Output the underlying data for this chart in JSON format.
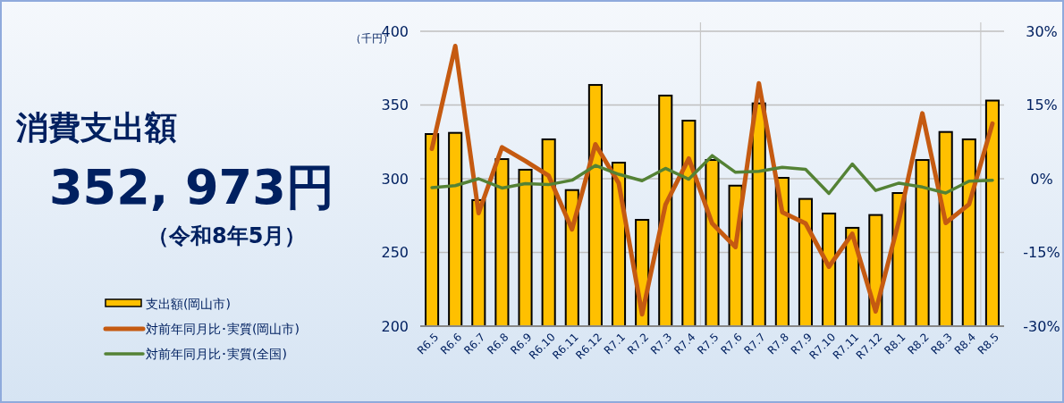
{
  "chart_data": {
    "type": "bar",
    "title": "消費支出額",
    "annotations": [
      "352, 973円",
      "（令和8年5月）"
    ],
    "ylabel": "（千円）",
    "categories": [
      "R6.5",
      "R6.6",
      "R6.7",
      "R6.8",
      "R6.9",
      "R6.10",
      "R6.11",
      "R6.12",
      "R7.1",
      "R7.2",
      "R7.3",
      "R7.4",
      "R7.5",
      "R7.6",
      "R7.7",
      "R7.8",
      "R7.9",
      "R7.10",
      "R7.11",
      "R7.12",
      "R8.1",
      "R8.2",
      "R8.3",
      "R8.4",
      "R8.5"
    ],
    "series": [
      {
        "name": "支出額(岡山市)",
        "color": "#ffc000",
        "values": [
          330.3,
          331.1,
          285.5,
          313.3,
          306.1,
          326.7,
          292.3,
          363.6,
          310.9,
          272.1,
          356.4,
          339.4,
          312.7,
          295.3,
          351.1,
          300.6,
          286.3,
          276.4,
          266.7,
          275.4,
          290.3,
          312.7,
          331.7,
          326.7,
          353.0
        ]
      },
      {
        "name": "対前年同月比･実質(岡山市)",
        "type": "line",
        "axis": "y2",
        "color": "#c55a11",
        "values": [
          6.1,
          27.0,
          -7.0,
          6.4,
          3.6,
          0.6,
          -10.3,
          7.0,
          -0.9,
          -27.6,
          -5.3,
          4.1,
          -9.1,
          -13.9,
          19.4,
          -6.8,
          -9.1,
          -17.9,
          -11.2,
          -27.0,
          -8.5,
          13.3,
          -9.0,
          -5.2,
          11.2
        ]
      },
      {
        "name": "対前年同月比･実質(全国)",
        "type": "line",
        "axis": "y2",
        "color": "#548235",
        "values": [
          -1.8,
          -1.4,
          0,
          -1.9,
          -1.0,
          -1.2,
          -0.3,
          2.7,
          0.9,
          -0.4,
          2.1,
          -0.1,
          4.7,
          1.3,
          1.5,
          2.3,
          1.9,
          -3.0,
          3.0,
          -2.4,
          -0.9,
          -1.7,
          -2.9,
          -0.5,
          -0.3
        ]
      }
    ],
    "ylim": [
      200,
      400
    ],
    "yticks": [
      200,
      250,
      300,
      350,
      400
    ],
    "y2lim": [
      -30,
      30
    ],
    "y2ticks": [
      {
        "value": -30,
        "label": "-30%"
      },
      {
        "value": -15,
        "label": "-15%"
      },
      {
        "value": 0,
        "label": "0%"
      },
      {
        "value": 15,
        "label": "15%"
      },
      {
        "value": 30,
        "label": "30%"
      }
    ],
    "ref_lines": [
      {
        "axis": "x",
        "value": "R7.5",
        "color": "#c8c8c8"
      },
      {
        "axis": "x",
        "value": "R8.5",
        "color": "#c8c8c8"
      }
    ],
    "grid": "y",
    "legend": "bottom left",
    "marker": "none",
    "line_style": "solid"
  }
}
